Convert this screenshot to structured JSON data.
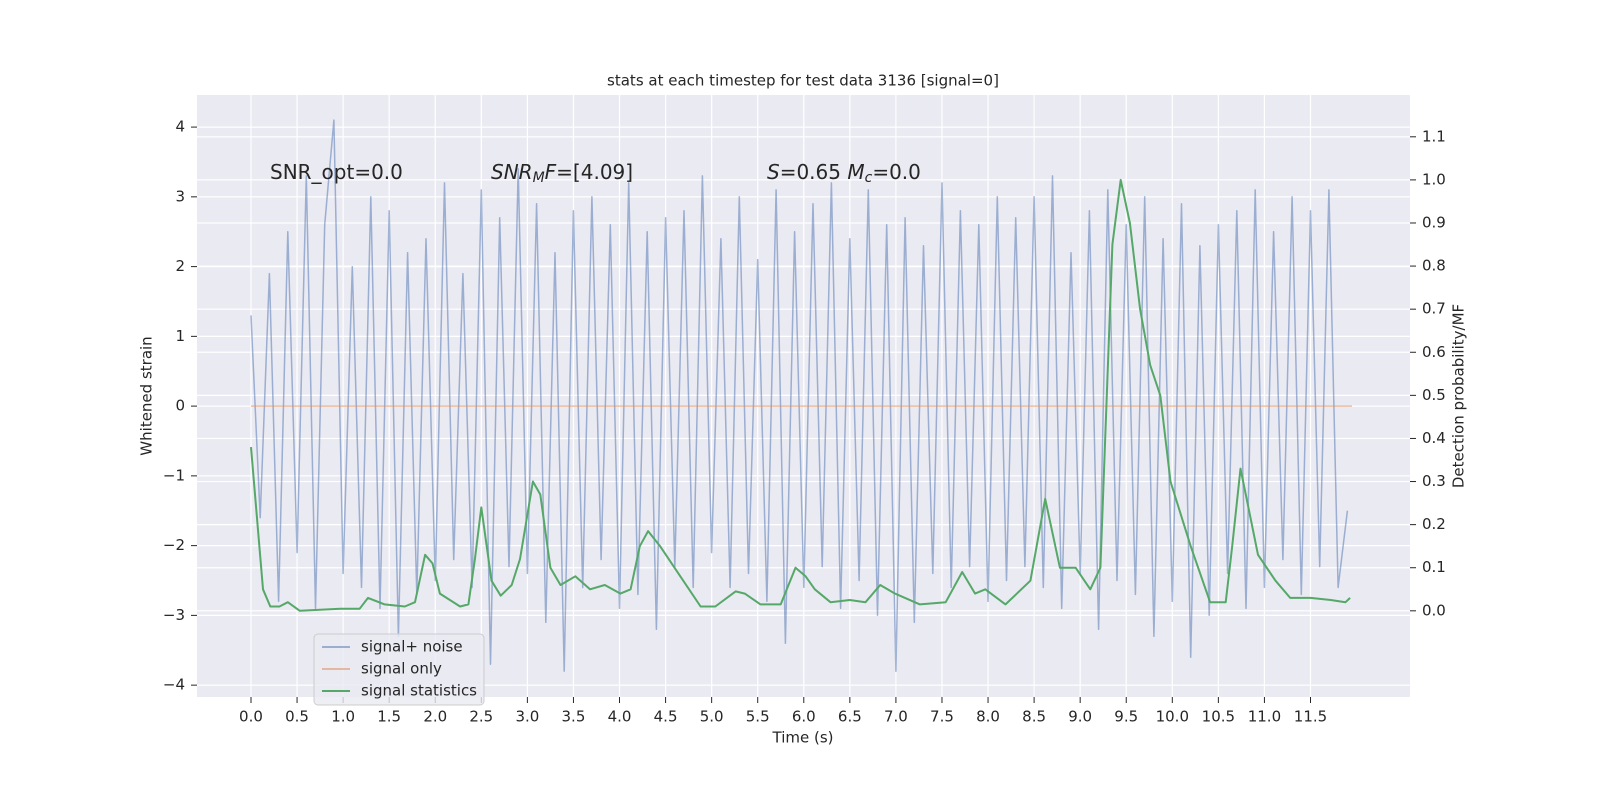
{
  "chart_data": {
    "type": "line",
    "title": "stats at each timestep for test data 3136 [signal=0]",
    "x_label": "Time (s)",
    "y_label": "Whitened strain",
    "y2_label": "Detection probability/MF",
    "annotations": [
      [
        {
          "text": "SNR_opt=0.0"
        }
      ],
      [
        {
          "text": "SNR",
          "italic": true
        },
        {
          "text": "M",
          "italic": true,
          "sub": true
        },
        {
          "text": "F",
          "italic": true
        },
        {
          "text": "=[4.09]"
        }
      ],
      [
        {
          "text": "S",
          "italic": true
        },
        {
          "text": "=0.65   "
        },
        {
          "text": "M",
          "italic": true
        },
        {
          "text": "c",
          "italic": true,
          "sub": true
        },
        {
          "text": "=0.0"
        }
      ]
    ],
    "xlim": [
      -0.586,
      12.58
    ],
    "ylim": [
      -4.17,
      4.46
    ],
    "y2lim": [
      -0.2,
      1.197
    ],
    "xticks": [
      {
        "value": 0,
        "label": "0.0"
      },
      0.5,
      {
        "value": 1,
        "label": "1.0"
      },
      1.5,
      {
        "value": 2,
        "label": "2.0"
      },
      2.5,
      {
        "value": 3,
        "label": "3.0"
      },
      3.5,
      {
        "value": 4,
        "label": "4.0"
      },
      4.5,
      {
        "value": 5,
        "label": "5.0"
      },
      5.5,
      {
        "value": 6,
        "label": "6.0"
      },
      6.5,
      {
        "value": 7,
        "label": "7.0"
      },
      7.5,
      {
        "value": 8,
        "label": "8.0"
      },
      8.5,
      {
        "value": 9,
        "label": "9.0"
      },
      9.5,
      {
        "value": 10,
        "label": "10.0"
      },
      10.5,
      {
        "value": 11,
        "label": "11.0"
      },
      11.5
    ],
    "yticks": [
      {
        "value": -4,
        "label": "−4"
      },
      {
        "value": -3,
        "label": "−3"
      },
      {
        "value": -2,
        "label": "−2"
      },
      {
        "value": -1,
        "label": "−1"
      },
      0,
      1,
      2,
      3,
      4
    ],
    "y2ticks": [
      {
        "value": 0,
        "label": "0.0"
      },
      0.1,
      0.2,
      0.3,
      0.4,
      0.5,
      0.6,
      0.7,
      0.8,
      0.9,
      {
        "value": 1,
        "label": "1.0"
      },
      1.1
    ],
    "grid": true,
    "legend": "lower left",
    "series": [
      {
        "name": "signal+ noise",
        "color": "#4c72b0",
        "x": [
          0,
          0.1,
          0.2,
          0.3,
          0.4,
          0.5,
          0.6,
          0.7,
          0.8,
          0.9,
          1,
          1.1,
          1.2,
          1.3,
          1.4,
          1.5,
          1.6,
          1.7,
          1.8,
          1.9,
          2,
          2.1,
          2.2,
          2.3,
          2.4,
          2.5,
          2.6,
          2.7,
          2.8,
          2.9,
          3,
          3.1,
          3.2,
          3.3,
          3.4,
          3.5,
          3.6,
          3.7,
          3.8,
          3.9,
          4,
          4.1,
          4.2,
          4.3,
          4.4,
          4.5,
          4.6,
          4.7,
          4.8,
          4.9,
          5,
          5.1,
          5.2,
          5.3,
          5.4,
          5.5,
          5.6,
          5.7,
          5.8,
          5.9,
          6,
          6.1,
          6.2,
          6.3,
          6.4,
          6.5,
          6.6,
          6.7,
          6.8,
          6.9,
          7,
          7.1,
          7.2,
          7.3,
          7.4,
          7.5,
          7.6,
          7.7,
          7.8,
          7.9,
          8,
          8.1,
          8.2,
          8.3,
          8.4,
          8.5,
          8.6,
          8.7,
          8.8,
          8.9,
          9,
          9.1,
          9.2,
          9.3,
          9.4,
          9.5,
          9.6,
          9.7,
          9.8,
          9.9,
          10,
          10.1,
          10.2,
          10.3,
          10.4,
          10.5,
          10.6,
          10.7,
          10.8,
          10.9,
          11,
          11.1,
          11.2,
          11.3,
          11.4,
          11.5,
          11.6,
          11.7,
          11.8,
          11.9
        ],
        "values": [
          1.3,
          -1.6,
          1.9,
          -2.8,
          2.5,
          -2.1,
          3.3,
          -2.9,
          2.6,
          4.1,
          -2.4,
          2.0,
          -2.6,
          3.0,
          -2.9,
          2.8,
          -3.3,
          2.2,
          -2.7,
          2.4,
          -2.5,
          3.2,
          -2.2,
          1.9,
          -2.6,
          3.1,
          -3.7,
          2.7,
          -2.3,
          3.4,
          -2.4,
          2.9,
          -3.1,
          2.2,
          -3.8,
          2.8,
          -2.6,
          3.0,
          -2.2,
          2.6,
          -2.9,
          3.2,
          -2.7,
          2.5,
          -3.2,
          2.7,
          -2.3,
          2.8,
          -2.6,
          3.3,
          -2.1,
          2.4,
          -2.6,
          3.0,
          -2.4,
          2.1,
          -2.8,
          3.1,
          -3.4,
          2.5,
          -2.6,
          2.9,
          -2.3,
          3.2,
          -2.9,
          2.4,
          -2.5,
          3.1,
          -3.0,
          2.6,
          -3.8,
          2.7,
          -3.1,
          2.3,
          -2.4,
          3.2,
          -2.6,
          2.8,
          -2.3,
          2.6,
          -2.8,
          3.0,
          -2.5,
          2.7,
          -2.3,
          3.0,
          -2.6,
          3.3,
          -2.9,
          2.2,
          -2.4,
          2.8,
          -3.2,
          3.1,
          -2.5,
          2.6,
          -2.7,
          3.0,
          -3.3,
          2.4,
          -2.8,
          2.9,
          -3.6,
          2.3,
          -3.0,
          2.6,
          -2.4,
          2.8,
          -2.9,
          3.1,
          -2.6,
          2.5,
          -2.2,
          3.0,
          -2.7,
          2.8,
          -2.3,
          3.1,
          -2.6,
          -1.5
        ]
      },
      {
        "name": "signal only",
        "color": "#dd8452",
        "x": [
          0,
          11.95
        ],
        "values": [
          0,
          0
        ]
      },
      {
        "name": "signal statistics",
        "color": "#55a868",
        "axis": "y2",
        "x": [
          0,
          0.13,
          0.21,
          0.31,
          0.4,
          0.53,
          0.97,
          1.18,
          1.27,
          1.45,
          1.67,
          1.78,
          1.89,
          1.97,
          2.05,
          2.27,
          2.36,
          2.43,
          2.5,
          2.61,
          2.71,
          2.83,
          2.92,
          3.06,
          3.14,
          3.25,
          3.36,
          3.52,
          3.68,
          3.84,
          4.01,
          4.12,
          4.22,
          4.31,
          4.44,
          4.66,
          4.88,
          5.04,
          5.26,
          5.36,
          5.53,
          5.75,
          5.91,
          6.02,
          6.12,
          6.29,
          6.5,
          6.67,
          6.83,
          6.99,
          7.26,
          7.54,
          7.72,
          7.86,
          7.97,
          8.19,
          8.46,
          8.62,
          8.78,
          8.95,
          9.11,
          9.22,
          9.35,
          9.44,
          9.54,
          9.65,
          9.76,
          9.87,
          9.98,
          10.2,
          10.41,
          10.58,
          10.65,
          10.74,
          10.93,
          11.12,
          11.28,
          11.5,
          11.72,
          11.88,
          11.93
        ],
        "values": [
          0.38,
          0.05,
          0.01,
          0.01,
          0.02,
          0.0,
          0.005,
          0.005,
          0.03,
          0.015,
          0.01,
          0.02,
          0.13,
          0.11,
          0.04,
          0.01,
          0.015,
          0.12,
          0.24,
          0.07,
          0.035,
          0.06,
          0.12,
          0.3,
          0.27,
          0.1,
          0.06,
          0.08,
          0.05,
          0.06,
          0.04,
          0.05,
          0.15,
          0.185,
          0.15,
          0.08,
          0.01,
          0.01,
          0.045,
          0.04,
          0.015,
          0.015,
          0.1,
          0.08,
          0.05,
          0.02,
          0.025,
          0.02,
          0.06,
          0.04,
          0.015,
          0.02,
          0.09,
          0.04,
          0.05,
          0.015,
          0.07,
          0.26,
          0.1,
          0.1,
          0.05,
          0.1,
          0.85,
          1.0,
          0.9,
          0.7,
          0.57,
          0.5,
          0.3,
          0.15,
          0.02,
          0.02,
          0.15,
          0.33,
          0.13,
          0.07,
          0.03,
          0.03,
          0.025,
          0.02,
          0.03
        ]
      }
    ]
  }
}
